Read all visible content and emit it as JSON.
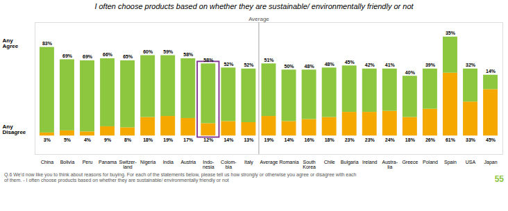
{
  "chart_data": {
    "type": "bar",
    "stacked": true,
    "title": "I often choose products based on whether they are sustainable/ environmentally friendly or not",
    "categories": [
      "China",
      "Bolivia",
      "Peru",
      "Panama",
      "Switzer-\nland",
      "Nigeria",
      "India",
      "Austria",
      "Indo-\nnesia",
      "Colom-\nbia",
      "Italy",
      "Average",
      "Romania",
      "South\nKorea",
      "Chile",
      "Bulgaria",
      "Ireland",
      "Austra-\nlia",
      "Greece",
      "Poland",
      "Spain",
      "USA",
      "Japan"
    ],
    "series": [
      {
        "name": "Any\nDisagree",
        "color": "#F5A800",
        "values": [
          3,
          5,
          4,
          9,
          8,
          18,
          19,
          17,
          12,
          14,
          13,
          19,
          14,
          16,
          18,
          23,
          23,
          24,
          18,
          26,
          61,
          33,
          45
        ],
        "value_labels": [
          "3%",
          "5%",
          "4%",
          "9%",
          "8%",
          "18%",
          "19%",
          "17%",
          "12%",
          "14%",
          "13%",
          "19%",
          "14%",
          "16%",
          "18%",
          "23%",
          "23%",
          "24%",
          "18%",
          "26%",
          "61%",
          "33%",
          "45%"
        ]
      },
      {
        "name": "Any\nAgree",
        "color": "#8DC63F",
        "values": [
          83,
          69,
          69,
          66,
          65,
          60,
          59,
          58,
          58,
          52,
          52,
          51,
          50,
          48,
          48,
          45,
          42,
          41,
          40,
          39,
          35,
          32,
          14
        ],
        "value_labels": [
          "83%",
          "69%",
          "69%",
          "66%",
          "65%",
          "60%",
          "59%",
          "58%",
          "58%",
          "52%",
          "52%",
          "51%",
          "50%",
          "48%",
          "48%",
          "45%",
          "42%",
          "41%",
          "40%",
          "39%",
          "35%",
          "32%",
          "14%"
        ]
      }
    ],
    "ylim": [
      -18,
      110
    ],
    "yticks": [],
    "grid": false,
    "tick_labels": "x",
    "data_labels": true,
    "annotations": [
      {
        "text": "Average",
        "category": "Average"
      },
      {
        "category": "Indo-\nnesia",
        "color": "#7B2D8B"
      },
      {
        "text": "Q.6 We'd now like you to think about reasons for buying. For each of the statements below, please tell us how strongly or otherwise you agree or disagree with each\nof them. - I often choose products based on whether they are sustainable/ environmentally friendly or not"
      },
      {
        "text": "55",
        "color": "#8DC63F"
      }
    ]
  }
}
